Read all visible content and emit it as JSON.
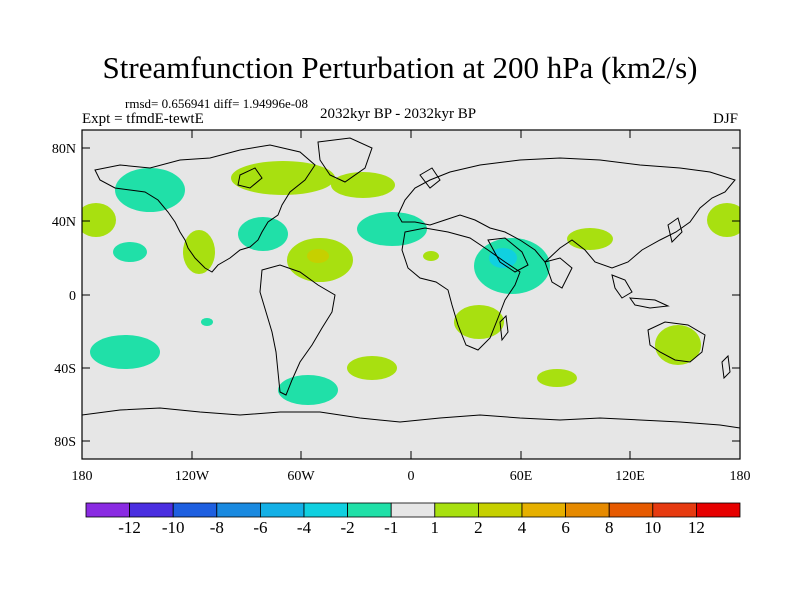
{
  "title": "Streamfunction Perturbation at 200 hPa (km2/s)",
  "stats": "rmsd= 0.656941 diff= 1.94996e-08",
  "expt": "Expt = tfmdE-tewtE",
  "period": "2032kyr BP - 2032kyr BP",
  "season": "DJF",
  "y_ticks": [
    "80N",
    "40N",
    "0",
    "40S",
    "80S"
  ],
  "x_ticks": [
    "180",
    "120W",
    "60W",
    "0",
    "60E",
    "120E",
    "180"
  ],
  "colorbar": {
    "labels": [
      "-12",
      "-10",
      "-8",
      "-6",
      "-4",
      "-2",
      "-1",
      "1",
      "2",
      "4",
      "6",
      "8",
      "10",
      "12"
    ],
    "colors": [
      "#8a2be2",
      "#4a2ee0",
      "#1e5fe0",
      "#1a8ae0",
      "#14b0e6",
      "#10d0e0",
      "#20e0a8",
      "#e6e6e6",
      "#a8e010",
      "#c6d000",
      "#e6b000",
      "#e68a00",
      "#e65a00",
      "#e63a10",
      "#e60000"
    ]
  },
  "colors": {
    "ocean": "#e6e6e6",
    "neg1": "#20e0a8",
    "neg2": "#10d0e0",
    "pos1": "#a8e010",
    "pos2": "#c6d000"
  }
}
